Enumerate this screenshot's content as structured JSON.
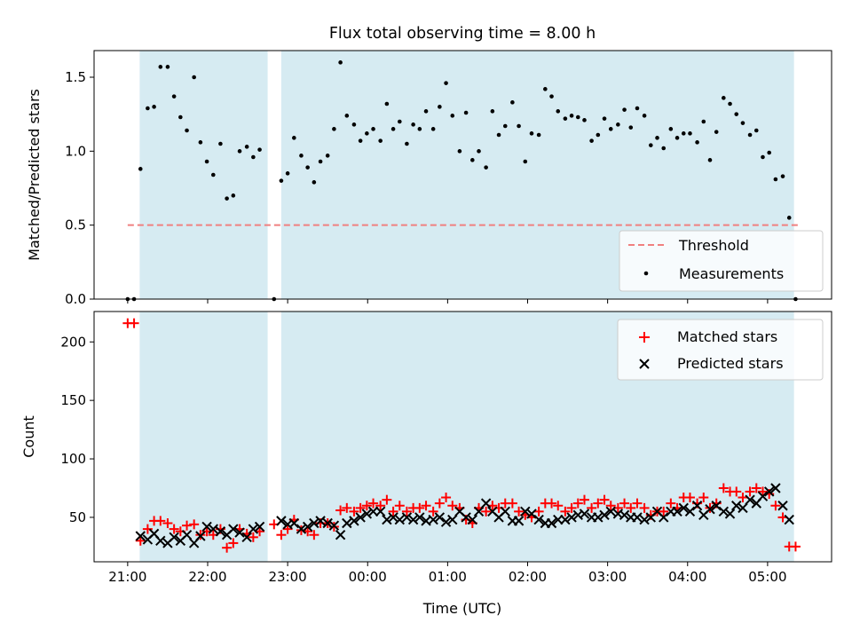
{
  "figure": {
    "title": "Flux total observing time = 8.00 h",
    "xlabel": "Time (UTC)"
  },
  "chart_data": [
    {
      "type": "scatter",
      "panel": "top",
      "title": "Flux total observing time = 8.00 h",
      "xlabel": "",
      "ylabel": "Matched/Predicted stars",
      "xlim": [
        -0.42,
        8.8
      ],
      "ylim": [
        0,
        1.68
      ],
      "x_ticks": [
        0,
        1,
        2,
        3,
        4,
        5,
        6,
        7,
        8
      ],
      "y_ticks": [
        0.0,
        0.5,
        1.0,
        1.5
      ],
      "y_tick_labels": [
        "0.0",
        "0.5",
        "1.0",
        "1.5"
      ],
      "grid": false,
      "legend": "lower right",
      "shaded_spans": [
        [
          0.15,
          1.75
        ],
        [
          1.92,
          8.33
        ]
      ],
      "shade_color": "#add8e6",
      "series": [
        {
          "name": "Threshold",
          "kind": "line",
          "style": "dashed",
          "color": "#f08080",
          "x": [
            0,
            8.42
          ],
          "y": [
            0.5,
            0.5
          ]
        },
        {
          "name": "Measurements",
          "kind": "points",
          "color": "#000000",
          "points": [
            [
              0.0,
              0.0
            ],
            [
              0.08,
              0.0
            ],
            [
              0.16,
              0.88
            ],
            [
              0.25,
              1.29
            ],
            [
              0.33,
              1.3
            ],
            [
              0.41,
              1.57
            ],
            [
              0.5,
              1.57
            ],
            [
              0.58,
              1.37
            ],
            [
              0.66,
              1.23
            ],
            [
              0.74,
              1.14
            ],
            [
              0.83,
              1.5
            ],
            [
              0.91,
              1.06
            ],
            [
              0.99,
              0.93
            ],
            [
              1.07,
              0.84
            ],
            [
              1.16,
              1.05
            ],
            [
              1.24,
              0.68
            ],
            [
              1.32,
              0.7
            ],
            [
              1.4,
              1.0
            ],
            [
              1.49,
              1.03
            ],
            [
              1.57,
              0.96
            ],
            [
              1.65,
              1.01
            ],
            [
              1.83,
              0.0
            ],
            [
              1.92,
              0.8
            ],
            [
              2.0,
              0.85
            ],
            [
              2.08,
              1.09
            ],
            [
              2.17,
              0.97
            ],
            [
              2.25,
              0.89
            ],
            [
              2.33,
              0.79
            ],
            [
              2.41,
              0.93
            ],
            [
              2.5,
              0.97
            ],
            [
              2.58,
              1.15
            ],
            [
              2.66,
              1.6
            ],
            [
              2.74,
              1.24
            ],
            [
              2.83,
              1.18
            ],
            [
              2.91,
              1.07
            ],
            [
              2.99,
              1.12
            ],
            [
              3.07,
              1.15
            ],
            [
              3.16,
              1.07
            ],
            [
              3.24,
              1.32
            ],
            [
              3.32,
              1.15
            ],
            [
              3.4,
              1.2
            ],
            [
              3.49,
              1.05
            ],
            [
              3.57,
              1.18
            ],
            [
              3.65,
              1.15
            ],
            [
              3.73,
              1.27
            ],
            [
              3.82,
              1.15
            ],
            [
              3.9,
              1.3
            ],
            [
              3.98,
              1.46
            ],
            [
              4.06,
              1.24
            ],
            [
              4.15,
              1.0
            ],
            [
              4.23,
              1.26
            ],
            [
              4.31,
              0.94
            ],
            [
              4.39,
              1.0
            ],
            [
              4.48,
              0.89
            ],
            [
              4.56,
              1.27
            ],
            [
              4.64,
              1.11
            ],
            [
              4.72,
              1.17
            ],
            [
              4.81,
              1.33
            ],
            [
              4.89,
              1.17
            ],
            [
              4.97,
              0.93
            ],
            [
              5.05,
              1.12
            ],
            [
              5.14,
              1.11
            ],
            [
              5.22,
              1.42
            ],
            [
              5.3,
              1.37
            ],
            [
              5.38,
              1.27
            ],
            [
              5.47,
              1.22
            ],
            [
              5.55,
              1.24
            ],
            [
              5.63,
              1.23
            ],
            [
              5.71,
              1.21
            ],
            [
              5.8,
              1.07
            ],
            [
              5.88,
              1.11
            ],
            [
              5.96,
              1.22
            ],
            [
              6.04,
              1.15
            ],
            [
              6.13,
              1.18
            ],
            [
              6.21,
              1.28
            ],
            [
              6.29,
              1.16
            ],
            [
              6.37,
              1.29
            ],
            [
              6.46,
              1.24
            ],
            [
              6.54,
              1.04
            ],
            [
              6.62,
              1.09
            ],
            [
              6.7,
              1.02
            ],
            [
              6.79,
              1.15
            ],
            [
              6.87,
              1.09
            ],
            [
              6.95,
              1.12
            ],
            [
              7.03,
              1.12
            ],
            [
              7.12,
              1.06
            ],
            [
              7.2,
              1.2
            ],
            [
              7.28,
              0.94
            ],
            [
              7.36,
              1.13
            ],
            [
              7.45,
              1.36
            ],
            [
              7.53,
              1.32
            ],
            [
              7.61,
              1.25
            ],
            [
              7.69,
              1.19
            ],
            [
              7.78,
              1.11
            ],
            [
              7.86,
              1.14
            ],
            [
              7.94,
              0.96
            ],
            [
              8.02,
              0.99
            ],
            [
              8.1,
              0.81
            ],
            [
              8.19,
              0.83
            ],
            [
              8.27,
              0.55
            ],
            [
              8.35,
              0.0
            ]
          ]
        }
      ]
    },
    {
      "type": "scatter",
      "panel": "bottom",
      "xlabel": "Time (UTC)",
      "ylabel": "Count",
      "xlim": [
        -0.42,
        8.8
      ],
      "ylim": [
        12,
        226
      ],
      "x_ticks": [
        0,
        1,
        2,
        3,
        4,
        5,
        6,
        7,
        8
      ],
      "x_tick_labels": [
        "21:00",
        "22:00",
        "23:00",
        "00:00",
        "01:00",
        "02:00",
        "03:00",
        "04:00",
        "05:00"
      ],
      "y_ticks": [
        50,
        100,
        150,
        200
      ],
      "y_tick_labels": [
        "50",
        "100",
        "150",
        "200"
      ],
      "grid": false,
      "legend": "upper right",
      "shaded_spans": [
        [
          0.15,
          1.75
        ],
        [
          1.92,
          8.33
        ]
      ],
      "shade_color": "#add8e6",
      "series": [
        {
          "name": "Matched stars",
          "marker": "plus",
          "color": "#ff0000",
          "x": [
            0.0,
            0.08,
            0.16,
            0.25,
            0.33,
            0.41,
            0.5,
            0.58,
            0.66,
            0.74,
            0.83,
            0.91,
            0.99,
            1.07,
            1.16,
            1.24,
            1.32,
            1.4,
            1.49,
            1.57,
            1.65,
            1.83,
            1.92,
            2.0,
            2.08,
            2.17,
            2.25,
            2.33,
            2.41,
            2.5,
            2.58,
            2.66,
            2.74,
            2.83,
            2.91,
            2.99,
            3.07,
            3.16,
            3.24,
            3.32,
            3.4,
            3.49,
            3.57,
            3.65,
            3.73,
            3.82,
            3.9,
            3.98,
            4.06,
            4.15,
            4.23,
            4.31,
            4.39,
            4.48,
            4.56,
            4.64,
            4.72,
            4.81,
            4.89,
            4.97,
            5.05,
            5.14,
            5.22,
            5.3,
            5.38,
            5.47,
            5.55,
            5.63,
            5.71,
            5.8,
            5.88,
            5.96,
            6.04,
            6.13,
            6.21,
            6.29,
            6.37,
            6.46,
            6.54,
            6.62,
            6.7,
            6.79,
            6.87,
            6.95,
            7.03,
            7.12,
            7.2,
            7.28,
            7.36,
            7.45,
            7.53,
            7.61,
            7.69,
            7.78,
            7.86,
            7.94,
            8.02,
            8.1,
            8.19,
            8.27,
            8.35
          ],
          "y": [
            216,
            216,
            30,
            40,
            47,
            47,
            45,
            40,
            38,
            43,
            44,
            35,
            38,
            35,
            40,
            24,
            28,
            40,
            36,
            33,
            38,
            44,
            35,
            40,
            48,
            39,
            38,
            35,
            45,
            45,
            42,
            56,
            58,
            55,
            58,
            60,
            62,
            60,
            65,
            55,
            60,
            55,
            58,
            58,
            60,
            55,
            62,
            67,
            60,
            58,
            48,
            45,
            58,
            55,
            60,
            58,
            62,
            62,
            55,
            52,
            50,
            55,
            62,
            62,
            60,
            55,
            58,
            62,
            65,
            58,
            62,
            65,
            60,
            58,
            62,
            58,
            62,
            58,
            52,
            55,
            55,
            62,
            58,
            67,
            67,
            62,
            67,
            58,
            62,
            75,
            72,
            72,
            67,
            72,
            75,
            72,
            70,
            60,
            50,
            25,
            25
          ]
        },
        {
          "name": "Predicted stars",
          "marker": "x",
          "color": "#000000",
          "x": [
            0.16,
            0.25,
            0.33,
            0.41,
            0.5,
            0.58,
            0.66,
            0.74,
            0.83,
            0.91,
            0.99,
            1.07,
            1.16,
            1.24,
            1.32,
            1.4,
            1.49,
            1.57,
            1.65,
            1.92,
            2.0,
            2.08,
            2.17,
            2.25,
            2.33,
            2.41,
            2.5,
            2.58,
            2.66,
            2.74,
            2.83,
            2.91,
            2.99,
            3.07,
            3.16,
            3.24,
            3.32,
            3.4,
            3.49,
            3.57,
            3.65,
            3.73,
            3.82,
            3.9,
            3.98,
            4.06,
            4.15,
            4.23,
            4.31,
            4.39,
            4.48,
            4.56,
            4.64,
            4.72,
            4.81,
            4.89,
            4.97,
            5.05,
            5.14,
            5.22,
            5.3,
            5.38,
            5.47,
            5.55,
            5.63,
            5.71,
            5.8,
            5.88,
            5.96,
            6.04,
            6.13,
            6.21,
            6.29,
            6.37,
            6.46,
            6.54,
            6.62,
            6.7,
            6.79,
            6.87,
            6.95,
            7.03,
            7.12,
            7.2,
            7.28,
            7.36,
            7.45,
            7.53,
            7.61,
            7.69,
            7.78,
            7.86,
            7.94,
            8.02,
            8.1,
            8.19,
            8.27
          ],
          "y": [
            34,
            31,
            36,
            30,
            28,
            33,
            30,
            35,
            28,
            34,
            42,
            40,
            38,
            35,
            40,
            37,
            33,
            40,
            42,
            47,
            44,
            45,
            40,
            42,
            45,
            47,
            45,
            43,
            35,
            45,
            47,
            50,
            53,
            55,
            55,
            48,
            50,
            48,
            50,
            48,
            50,
            47,
            48,
            50,
            46,
            48,
            55,
            50,
            48,
            55,
            62,
            55,
            50,
            55,
            47,
            47,
            55,
            53,
            48,
            45,
            45,
            48,
            48,
            50,
            52,
            53,
            50,
            50,
            52,
            55,
            53,
            52,
            50,
            50,
            48,
            50,
            55,
            50,
            55,
            55,
            58,
            55,
            60,
            52,
            57,
            60,
            55,
            53,
            60,
            58,
            65,
            62,
            68,
            72,
            75,
            60,
            48
          ]
        }
      ]
    }
  ]
}
